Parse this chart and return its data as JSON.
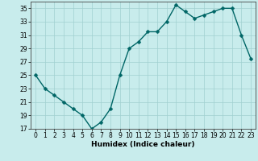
{
  "x": [
    0,
    1,
    2,
    3,
    4,
    5,
    6,
    7,
    8,
    9,
    10,
    11,
    12,
    13,
    14,
    15,
    16,
    17,
    18,
    19,
    20,
    21,
    22,
    23
  ],
  "y": [
    25,
    23,
    22,
    21,
    20,
    19,
    17,
    18,
    20,
    25,
    29,
    30,
    31.5,
    31.5,
    33,
    35.5,
    34.5,
    33.5,
    34,
    34.5,
    35,
    35,
    31,
    27.5
  ],
  "line_color": "#006666",
  "marker_color": "#006666",
  "bg_color": "#c8ecec",
  "grid_color": "#a0d0d0",
  "xlabel": "Humidex (Indice chaleur)",
  "ylim": [
    17,
    36
  ],
  "xlim": [
    -0.5,
    23.5
  ],
  "yticks": [
    17,
    19,
    21,
    23,
    25,
    27,
    29,
    31,
    33,
    35
  ],
  "xticks": [
    0,
    1,
    2,
    3,
    4,
    5,
    6,
    7,
    8,
    9,
    10,
    11,
    12,
    13,
    14,
    15,
    16,
    17,
    18,
    19,
    20,
    21,
    22,
    23
  ],
  "tick_fontsize": 5.5,
  "xlabel_fontsize": 6.5,
  "linewidth": 1.0,
  "markersize": 2.5
}
